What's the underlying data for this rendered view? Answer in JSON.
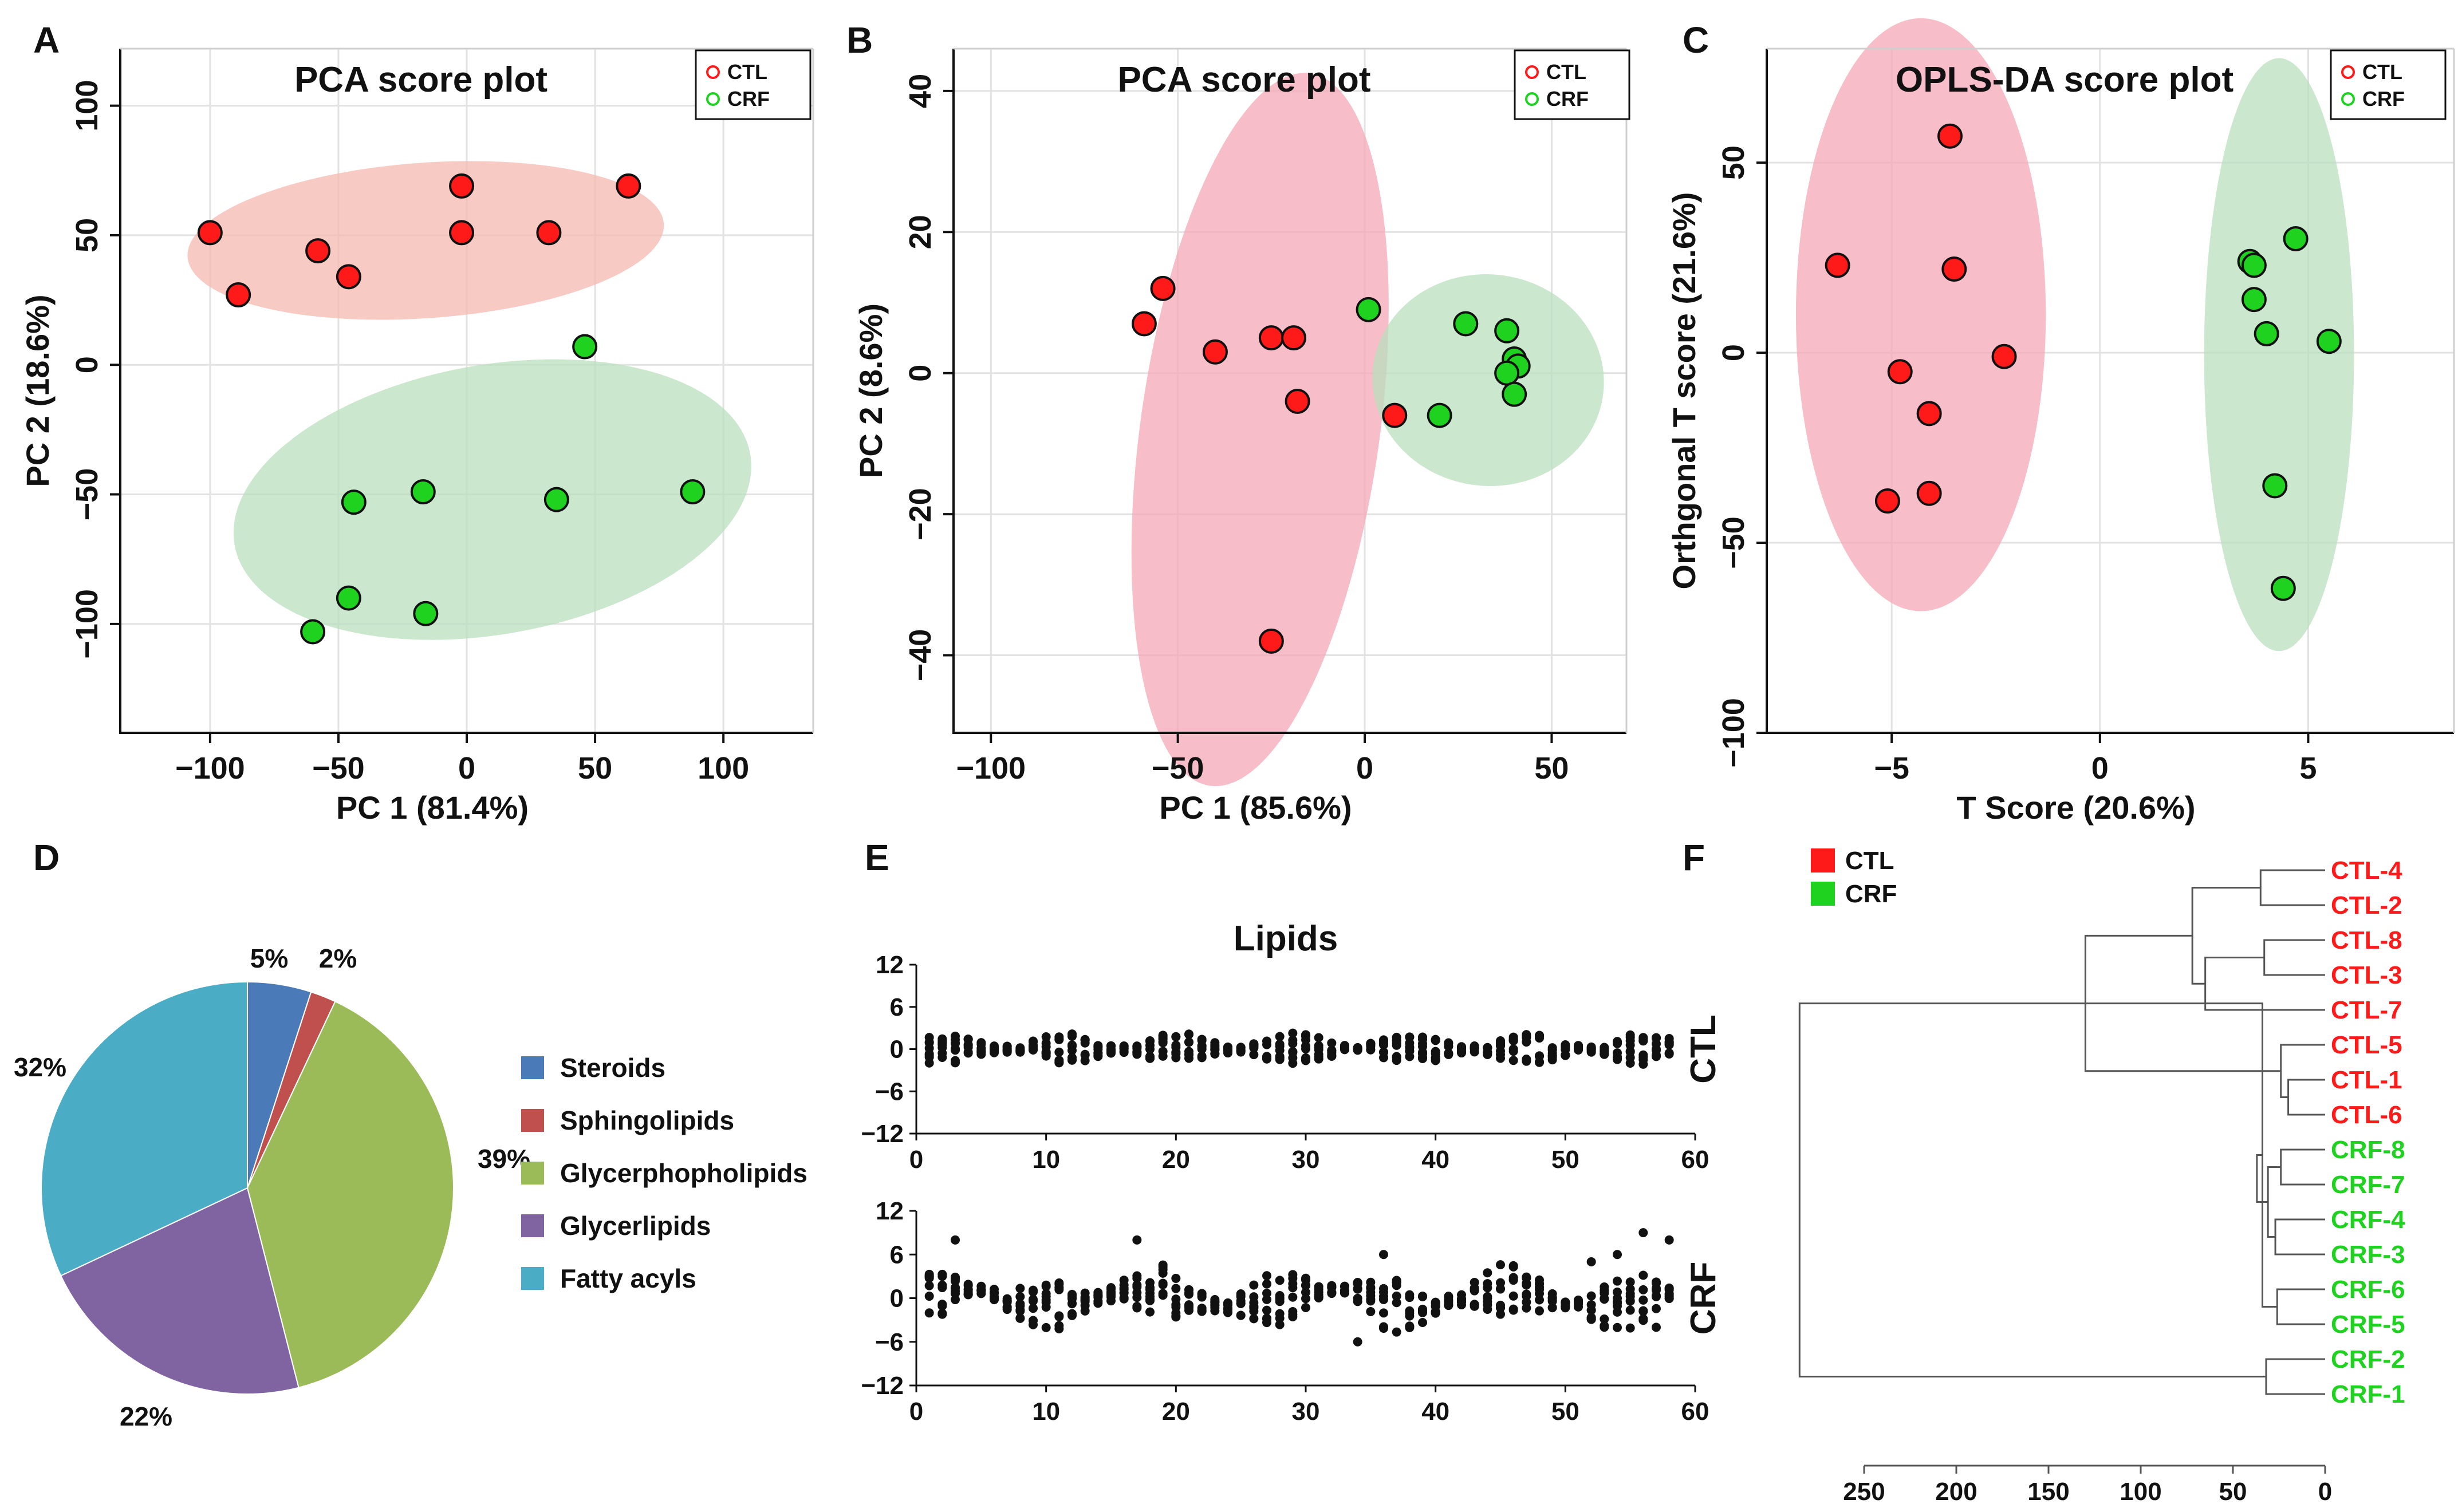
{
  "panels": {
    "A": "A",
    "B": "B",
    "C": "C",
    "D": "D",
    "E": "E",
    "F": "F"
  },
  "colors": {
    "ctl": "#ff1a1a",
    "crf": "#1fd21f",
    "ctl_ellipse": "#f5b8b0",
    "crf_ellipse": "#b9dfbd",
    "ctl_ellipse_b": "#f4a8b8",
    "pie": [
      "#4a7ab8",
      "#c0504d",
      "#9bbb59",
      "#8064a2",
      "#4bacc6"
    ]
  },
  "legend": {
    "ctl": "CTL",
    "crf": "CRF"
  },
  "chart_data": [
    {
      "id": "A",
      "type": "scatter",
      "title": "PCA score plot",
      "xlabel": "PC 1 (81.4%)",
      "ylabel": "PC 2 (18.6%)",
      "xlim": [
        -135,
        135
      ],
      "ylim": [
        -142,
        122
      ],
      "xticks": [
        -100,
        -50,
        0,
        50,
        100
      ],
      "yticks": [
        -100,
        -50,
        0,
        50,
        100
      ],
      "xtick_labels": [
        "−100",
        "−50",
        "0",
        "50",
        "100"
      ],
      "ytick_labels": [
        "−100",
        "−50",
        "0",
        "50",
        "100"
      ],
      "series": [
        {
          "name": "CTL",
          "points": [
            [
              -100,
              51
            ],
            [
              -89,
              27
            ],
            [
              -58,
              44
            ],
            [
              -46,
              34
            ],
            [
              -2,
              69
            ],
            [
              -2,
              51
            ],
            [
              32,
              51
            ],
            [
              63,
              69
            ]
          ]
        },
        {
          "name": "CRF",
          "points": [
            [
              46,
              7
            ],
            [
              -17,
              -49
            ],
            [
              -44,
              -53
            ],
            [
              35,
              -52
            ],
            [
              88,
              -49
            ],
            [
              -46,
              -90
            ],
            [
              -16,
              -96
            ],
            [
              -60,
              -103
            ]
          ]
        }
      ],
      "ellipses": [
        {
          "group": "CTL",
          "cx": -16,
          "cy": 48,
          "rx": 93,
          "ry": 30,
          "angle": 4
        },
        {
          "group": "CRF",
          "cx": 10,
          "cy": -52,
          "rx": 102,
          "ry": 52,
          "angle": 10
        }
      ]
    },
    {
      "id": "B",
      "type": "scatter",
      "title": "PCA score plot",
      "xlabel": "PC 1 (85.6%)",
      "ylabel": "PC 2 (8.6%)",
      "xlim": [
        -110,
        70
      ],
      "ylim": [
        -51,
        46
      ],
      "xticks": [
        -100,
        -50,
        0,
        50
      ],
      "yticks": [
        -40,
        -20,
        0,
        20,
        40
      ],
      "xtick_labels": [
        "−100",
        "−50",
        "0",
        "50"
      ],
      "ytick_labels": [
        "−40",
        "−20",
        "0",
        "20",
        "40"
      ],
      "series": [
        {
          "name": "CTL",
          "points": [
            [
              -54,
              12
            ],
            [
              -59,
              7
            ],
            [
              -40,
              3
            ],
            [
              -25,
              5
            ],
            [
              -19,
              5
            ],
            [
              -18,
              -4
            ],
            [
              8,
              -6
            ],
            [
              -25,
              -38
            ]
          ]
        },
        {
          "name": "CRF",
          "points": [
            [
              1,
              9
            ],
            [
              27,
              7
            ],
            [
              38,
              6
            ],
            [
              40,
              2
            ],
            [
              41,
              1
            ],
            [
              38,
              0
            ],
            [
              40,
              -3
            ],
            [
              20,
              -6
            ]
          ]
        }
      ],
      "ellipses": [
        {
          "group": "CTL",
          "cx": -28,
          "cy": -8,
          "rx": 32,
          "ry": 51,
          "angle": -8
        },
        {
          "group": "CRF",
          "cx": 33,
          "cy": -1,
          "rx": 31,
          "ry": 15,
          "angle": -6
        }
      ]
    },
    {
      "id": "C",
      "type": "scatter",
      "title": "OPLS-DA score plot",
      "xlabel": "T Score (20.6%)",
      "ylabel": "Orthgonal T score (21.6%)",
      "xlim": [
        -8,
        8.5
      ],
      "ylim": [
        -100,
        80
      ],
      "xticks": [
        -5,
        0,
        5
      ],
      "yticks": [
        -100,
        -50,
        0,
        50
      ],
      "xtick_labels": [
        "−5",
        "0",
        "5"
      ],
      "ytick_labels": [
        "−100",
        "−50",
        "0",
        "50"
      ],
      "series": [
        {
          "name": "CTL",
          "points": [
            [
              -3.6,
              57
            ],
            [
              -6.3,
              23
            ],
            [
              -3.5,
              22
            ],
            [
              -2.3,
              -1
            ],
            [
              -4.8,
              -5
            ],
            [
              -4.1,
              -16
            ],
            [
              -4.1,
              -37
            ],
            [
              -5.1,
              -39
            ]
          ]
        },
        {
          "name": "CRF",
          "points": [
            [
              3.6,
              24
            ],
            [
              3.7,
              23
            ],
            [
              4.7,
              30
            ],
            [
              3.7,
              14
            ],
            [
              4.0,
              5
            ],
            [
              5.5,
              3
            ],
            [
              4.2,
              -35
            ],
            [
              4.4,
              -62
            ]
          ]
        }
      ],
      "ellipses": [
        {
          "group": "CTL",
          "cx": -4.3,
          "cy": 10,
          "rx": 3.0,
          "ry": 78,
          "angle": 0
        },
        {
          "group": "CRF",
          "cx": 4.3,
          "cy": -0.5,
          "rx": 1.8,
          "ry": 78,
          "angle": 0
        }
      ]
    },
    {
      "id": "D",
      "type": "pie",
      "categories": [
        "Steroids",
        "Sphingolipids",
        "Glycerphopholipids",
        "Glycerlipids",
        "Fatty acyls"
      ],
      "values": [
        5,
        2,
        39,
        22,
        32
      ],
      "labels": [
        "5%",
        "2%",
        "39%",
        "22%",
        "32%"
      ]
    },
    {
      "id": "E",
      "type": "scatter",
      "title": "Lipids",
      "xlim": [
        0,
        60
      ],
      "ylim": [
        -12,
        12
      ],
      "xticks": [
        0,
        10,
        20,
        30,
        40,
        50,
        60
      ],
      "yticks": [
        -12,
        -6,
        0,
        6,
        12
      ],
      "xtick_labels": [
        "0",
        "10",
        "20",
        "30",
        "40",
        "50",
        "60"
      ],
      "ytick_labels": [
        "−12",
        "−6",
        "0",
        "6",
        "12"
      ],
      "rows": [
        {
          "name": "CTL",
          "spread": 2.3,
          "extremes": []
        },
        {
          "name": "CRF",
          "spread": 3.8,
          "extremes": [
            [
              3,
              8
            ],
            [
              17,
              8
            ],
            [
              34,
              -6
            ],
            [
              36,
              6
            ],
            [
              56,
              9
            ],
            [
              57,
              -4
            ],
            [
              58,
              8
            ],
            [
              52,
              5
            ],
            [
              54,
              6
            ]
          ]
        }
      ],
      "n_lipids": 58
    },
    {
      "id": "F",
      "type": "dendrogram",
      "legend": [
        "CTL",
        "CRF"
      ],
      "leaves": [
        "CTL-4",
        "CTL-2",
        "CTL-8",
        "CTL-3",
        "CTL-7",
        "CTL-5",
        "CTL-1",
        "CTL-6",
        "CRF-8",
        "CRF-7",
        "CRF-4",
        "CRF-3",
        "CRF-6",
        "CRF-5",
        "CRF-2",
        "CRF-1"
      ],
      "leaf_groups": [
        "CTL",
        "CTL",
        "CTL",
        "CTL",
        "CTL",
        "CTL",
        "CTL",
        "CTL",
        "CRF",
        "CRF",
        "CRF",
        "CRF",
        "CRF",
        "CRF",
        "CRF",
        "CRF"
      ],
      "merges": [
        [
          0,
          1,
          35
        ],
        [
          2,
          3,
          33
        ],
        [
          17,
          4,
          65
        ],
        [
          16,
          18,
          72
        ],
        [
          6,
          7,
          20
        ],
        [
          5,
          20,
          24
        ],
        [
          19,
          21,
          130
        ],
        [
          8,
          9,
          24
        ],
        [
          10,
          11,
          27
        ],
        [
          12,
          13,
          26
        ],
        [
          23,
          24,
          31
        ],
        [
          22,
          25,
          34
        ],
        [
          14,
          15,
          32
        ],
        [
          26,
          27,
          37
        ],
        [
          22,
          28,
          285
        ]
      ],
      "xlim": [
        0,
        250
      ],
      "xticks": [
        250,
        200,
        150,
        100,
        50,
        0
      ],
      "xtick_labels": [
        "250",
        "200",
        "150",
        "100",
        "50",
        "0"
      ]
    }
  ]
}
